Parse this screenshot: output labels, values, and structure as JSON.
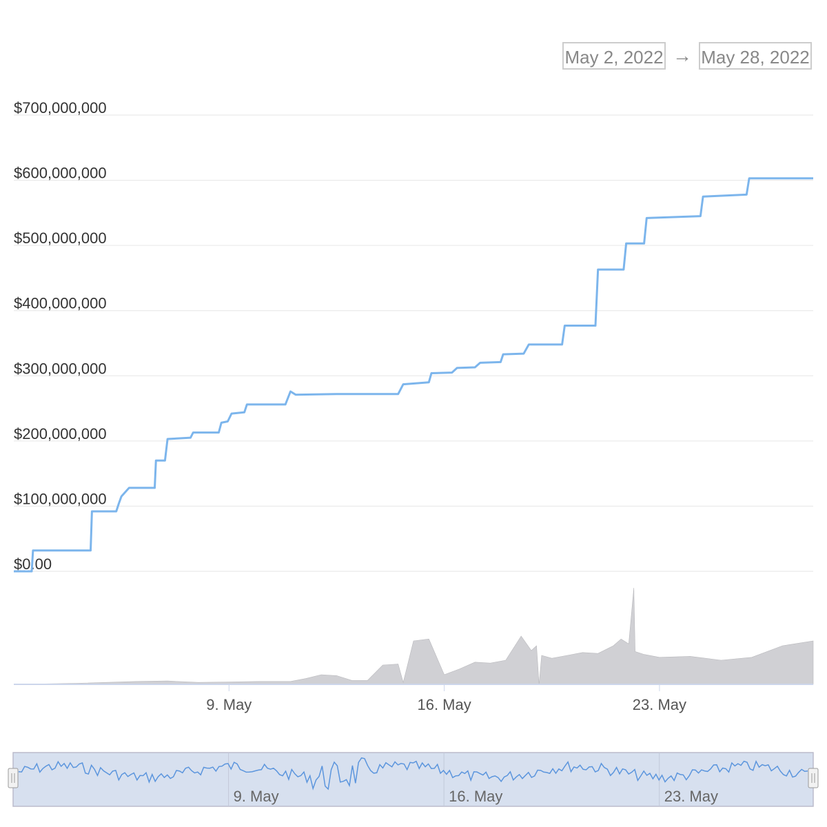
{
  "range_selector": {
    "from": "May 2, 2022",
    "arrow": "→",
    "to": "May 28, 2022"
  },
  "colors": {
    "line": "#7cb5ec",
    "volume": "#c8c8cc",
    "grid": "#e6e6e6",
    "navigator_bg": "#d7e0ef",
    "navigator_line": "#5b95dd"
  },
  "chart_data": {
    "type": "line",
    "title": "",
    "xlabel": "",
    "ylabel": "",
    "x_range": [
      "2022-05-02",
      "2022-05-28"
    ],
    "ylim": [
      0,
      700000000
    ],
    "yticks": [
      {
        "value": 0,
        "label": "$0.00"
      },
      {
        "value": 100000000,
        "label": "$100,000,000"
      },
      {
        "value": 200000000,
        "label": "$200,000,000"
      },
      {
        "value": 300000000,
        "label": "$300,000,000"
      },
      {
        "value": 400000000,
        "label": "$400,000,000"
      },
      {
        "value": 500000000,
        "label": "$500,000,000"
      },
      {
        "value": 600000000,
        "label": "$600,000,000"
      },
      {
        "value": 700000000,
        "label": "$700,000,000"
      }
    ],
    "xticks": [
      {
        "date": "2022-05-09",
        "label": "9. May"
      },
      {
        "date": "2022-05-16",
        "label": "16. May"
      },
      {
        "date": "2022-05-23",
        "label": "23. May"
      }
    ],
    "grid": true,
    "series": [
      {
        "kind": "step-line",
        "points": [
          [
            "2022-05-02",
            0
          ],
          [
            "2022-05-02T14:00",
            0
          ],
          [
            "2022-05-02T15:00",
            32000000
          ],
          [
            "2022-05-04T12:00",
            32000000
          ],
          [
            "2022-05-04T13:00",
            92000000
          ],
          [
            "2022-05-05T08:00",
            92000000
          ],
          [
            "2022-05-05T10:00",
            104000000
          ],
          [
            "2022-05-05T12:00",
            115000000
          ],
          [
            "2022-05-05T18:00",
            128000000
          ],
          [
            "2022-05-06T14:00",
            128000000
          ],
          [
            "2022-05-06T15:00",
            170000000
          ],
          [
            "2022-05-06T22:00",
            170000000
          ],
          [
            "2022-05-07T00:00",
            203000000
          ],
          [
            "2022-05-07T18:00",
            205000000
          ],
          [
            "2022-05-07T20:00",
            213000000
          ],
          [
            "2022-05-08T16:00",
            213000000
          ],
          [
            "2022-05-08T18:00",
            228000000
          ],
          [
            "2022-05-08T23:00",
            230000000
          ],
          [
            "2022-05-09T02:00",
            242000000
          ],
          [
            "2022-05-09T12:00",
            244000000
          ],
          [
            "2022-05-09T14:00",
            256000000
          ],
          [
            "2022-05-10T20:00",
            256000000
          ],
          [
            "2022-05-11T00:00",
            276000000
          ],
          [
            "2022-05-11T04:00",
            271000000
          ],
          [
            "2022-05-12T12:00",
            272000000
          ],
          [
            "2022-05-14T12:00",
            272000000
          ],
          [
            "2022-05-14T16:00",
            287000000
          ],
          [
            "2022-05-15T12:00",
            290000000
          ],
          [
            "2022-05-15T14:00",
            304000000
          ],
          [
            "2022-05-16T06:00",
            305000000
          ],
          [
            "2022-05-16T10:00",
            312000000
          ],
          [
            "2022-05-17T00:00",
            313000000
          ],
          [
            "2022-05-17T04:00",
            320000000
          ],
          [
            "2022-05-17T20:00",
            321000000
          ],
          [
            "2022-05-17T22:00",
            333000000
          ],
          [
            "2022-05-18T14:00",
            334000000
          ],
          [
            "2022-05-18T18:00",
            348000000
          ],
          [
            "2022-05-19T20:00",
            348000000
          ],
          [
            "2022-05-19T22:00",
            377000000
          ],
          [
            "2022-05-20T22:00",
            377000000
          ],
          [
            "2022-05-21T00:00",
            463000000
          ],
          [
            "2022-05-21T20:00",
            463000000
          ],
          [
            "2022-05-21T22:00",
            503000000
          ],
          [
            "2022-05-22T12:00",
            503000000
          ],
          [
            "2022-05-22T14:00",
            542000000
          ],
          [
            "2022-05-24T08:00",
            545000000
          ],
          [
            "2022-05-24T10:00",
            575000000
          ],
          [
            "2022-05-25T20:00",
            578000000
          ],
          [
            "2022-05-25T22:00",
            603000000
          ],
          [
            "2022-05-28",
            603000000
          ]
        ]
      },
      {
        "kind": "volume-area",
        "points": [
          [
            "2022-05-02",
            0
          ],
          [
            "2022-05-03",
            0.005
          ],
          [
            "2022-05-04",
            0.01
          ],
          [
            "2022-05-05",
            0.02
          ],
          [
            "2022-05-06",
            0.03
          ],
          [
            "2022-05-07",
            0.035
          ],
          [
            "2022-05-08",
            0.02
          ],
          [
            "2022-05-09",
            0.025
          ],
          [
            "2022-05-10",
            0.03
          ],
          [
            "2022-05-11",
            0.03
          ],
          [
            "2022-05-11T12:00",
            0.06
          ],
          [
            "2022-05-12",
            0.1
          ],
          [
            "2022-05-12T12:00",
            0.09
          ],
          [
            "2022-05-13",
            0.04
          ],
          [
            "2022-05-13T12:00",
            0.04
          ],
          [
            "2022-05-14",
            0.2
          ],
          [
            "2022-05-14T12:00",
            0.21
          ],
          [
            "2022-05-14T16:00",
            0.02
          ],
          [
            "2022-05-15",
            0.45
          ],
          [
            "2022-05-15T12:00",
            0.47
          ],
          [
            "2022-05-16",
            0.1
          ],
          [
            "2022-05-16T12:00",
            0.16
          ],
          [
            "2022-05-17",
            0.23
          ],
          [
            "2022-05-17T12:00",
            0.22
          ],
          [
            "2022-05-18",
            0.25
          ],
          [
            "2022-05-18T12:00",
            0.5
          ],
          [
            "2022-05-18T20:00",
            0.35
          ],
          [
            "2022-05-19",
            0.4
          ],
          [
            "2022-05-19T02:00",
            0.0
          ],
          [
            "2022-05-19T04:00",
            0.3
          ],
          [
            "2022-05-19T12:00",
            0.27
          ],
          [
            "2022-05-20",
            0.3
          ],
          [
            "2022-05-20T12:00",
            0.33
          ],
          [
            "2022-05-21",
            0.32
          ],
          [
            "2022-05-21T12:00",
            0.4
          ],
          [
            "2022-05-21T18:00",
            0.47
          ],
          [
            "2022-05-22",
            0.42
          ],
          [
            "2022-05-22T04:00",
            1.0
          ],
          [
            "2022-05-22T05:00",
            0.34
          ],
          [
            "2022-05-22T12:00",
            0.31
          ],
          [
            "2022-05-23",
            0.28
          ],
          [
            "2022-05-24",
            0.29
          ],
          [
            "2022-05-25",
            0.25
          ],
          [
            "2022-05-26",
            0.28
          ],
          [
            "2022-05-27",
            0.4
          ],
          [
            "2022-05-28",
            0.45
          ]
        ]
      }
    ],
    "navigator": {
      "xticks": [
        {
          "date": "2022-05-09",
          "label": "9. May"
        },
        {
          "date": "2022-05-16",
          "label": "16. May"
        },
        {
          "date": "2022-05-23",
          "label": "23. May"
        }
      ]
    }
  }
}
